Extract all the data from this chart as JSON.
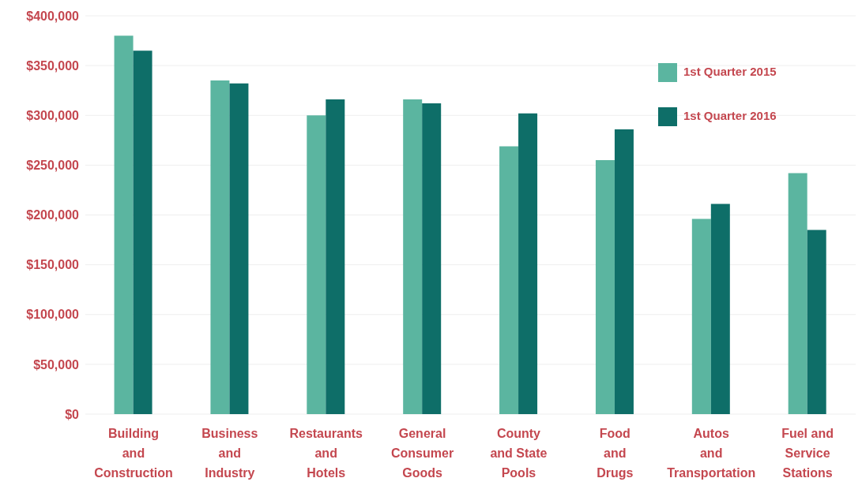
{
  "chart_data": {
    "type": "bar",
    "categories": [
      "Building\nand\nConstruction",
      "Business\nand\nIndustry",
      "Restaurants\nand\nHotels",
      "General\nConsumer\nGoods",
      "County\nand State\nPools",
      "Food\nand\nDrugs",
      "Autos\nand\nTransportation",
      "Fuel and\nService\nStations"
    ],
    "series": [
      {
        "name": "1st Quarter 2015",
        "color": "#5bb5a0",
        "values": [
          380000,
          335000,
          300000,
          316000,
          269000,
          255000,
          196000,
          242000
        ]
      },
      {
        "name": "1st Quarter 2016",
        "color": "#0e6e68",
        "values": [
          365000,
          332000,
          316000,
          312000,
          302000,
          286000,
          211000,
          185000
        ]
      }
    ],
    "ylim": [
      0,
      400000
    ],
    "yticks": [
      {
        "value": 0,
        "label": "$0"
      },
      {
        "value": 50000,
        "label": "$50,000"
      },
      {
        "value": 100000,
        "label": "$100,000"
      },
      {
        "value": 150000,
        "label": "$150,000"
      },
      {
        "value": 200000,
        "label": "$200,000"
      },
      {
        "value": 250000,
        "label": "$250,000"
      },
      {
        "value": 300000,
        "label": "$300,000"
      },
      {
        "value": 350000,
        "label": "$350,000"
      },
      {
        "value": 400000,
        "label": "$400,000"
      }
    ],
    "grid": "y",
    "legend": "top right"
  }
}
